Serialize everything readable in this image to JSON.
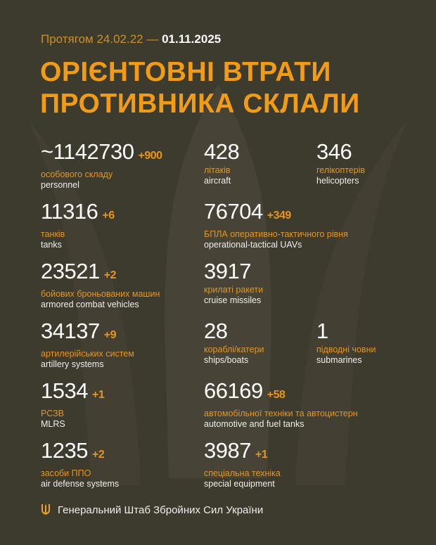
{
  "header": {
    "period_prefix": "Протягом 24.02.22 —",
    "period_end": "01.11.2025",
    "title_line1": "ОРІЄНТОВНІ ВТРАТИ",
    "title_line2": "ПРОТИВНИКА СКЛАЛИ"
  },
  "stats": [
    {
      "value": "~1142730",
      "delta": "+900",
      "ua": "особового складу",
      "en": "personnel"
    },
    {
      "value": "428",
      "delta": "",
      "ua": "літаків",
      "en": "aircraft"
    },
    {
      "value": "346",
      "delta": "",
      "ua": "гелікоптерів",
      "en": "helicopters"
    },
    {
      "value": "11316",
      "delta": "+6",
      "ua": "танків",
      "en": "tanks"
    },
    {
      "value": "76704",
      "delta": "+349",
      "ua": "БПЛА оперативно-тактичного рівня",
      "en": "operational-tactical UAVs"
    },
    {
      "value": "23521",
      "delta": "+2",
      "ua": "бойових броньованих машин",
      "en": "armored combat vehicles"
    },
    {
      "value": "3917",
      "delta": "",
      "ua": "крилаті ракети",
      "en": "cruise missiles"
    },
    {
      "value": "34137",
      "delta": "+9",
      "ua": "артилерійських систем",
      "en": "artillery systems"
    },
    {
      "value": "28",
      "delta": "",
      "ua": "кораблі/катери",
      "en": "ships/boats"
    },
    {
      "value": "1",
      "delta": "",
      "ua": "підводні човни",
      "en": "submarines"
    },
    {
      "value": "1534",
      "delta": "+1",
      "ua": "РСЗВ",
      "en": "MLRS"
    },
    {
      "value": "66169",
      "delta": "+58",
      "ua": "автомобільної техніки та автоцистерн",
      "en": "automotive and fuel tanks"
    },
    {
      "value": "1235",
      "delta": "+2",
      "ua": "засоби ППО",
      "en": "air defense systems"
    },
    {
      "value": "3987",
      "delta": "+1",
      "ua": "спеціальна техніка",
      "en": "special equipment"
    }
  ],
  "footer": {
    "org": "Генеральний Штаб Збройних Сил України",
    "icon": "trident-icon"
  },
  "colors": {
    "background": "#3d3a2e",
    "accent": "#f29c16"
  }
}
